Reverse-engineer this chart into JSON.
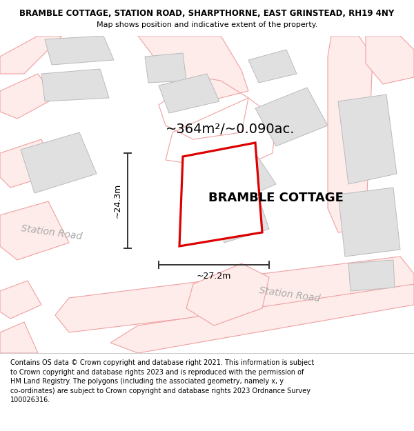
{
  "title_line1": "BRAMBLE COTTAGE, STATION ROAD, SHARPTHORNE, EAST GRINSTEAD, RH19 4NY",
  "title_line2": "Map shows position and indicative extent of the property.",
  "footer_lines": "Contains OS data © Crown copyright and database right 2021. This information is subject\nto Crown copyright and database rights 2023 and is reproduced with the permission of\nHM Land Registry. The polygons (including the associated geometry, namely x, y\nco-ordinates) are subject to Crown copyright and database rights 2023 Ordnance Survey\n100026316.",
  "area_text": "~364m²/~0.090ac.",
  "property_label": "BRAMBLE COTTAGE",
  "dim_horizontal": "~27.2m",
  "dim_vertical": "~24.3m",
  "road_label1": "Station Road",
  "road_label2": "Station Road",
  "bg_color": "#ffffff",
  "road_line_color": "#f0a0a0",
  "road_fill_color": "#fdecea",
  "building_color": "#e0e0e0",
  "building_edge_color": "#bbbbbb",
  "plot_outline_color": "#dd0000",
  "dim_line_color": "#333333",
  "road_label_color": "#aaaaaa",
  "title_fontsize": 8.5,
  "subtitle_fontsize": 8.0,
  "footer_fontsize": 7.0,
  "area_fontsize": 14,
  "property_fontsize": 13,
  "road_fontsize": 10,
  "dim_fontsize": 9
}
